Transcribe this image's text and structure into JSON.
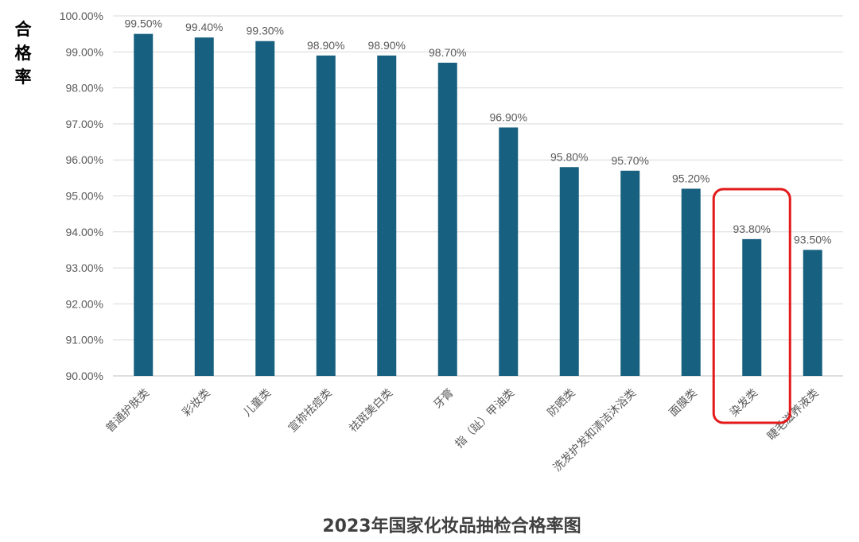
{
  "chart_data": {
    "type": "bar",
    "title": "2023年国家化妆品抽检合格率图",
    "ylabel": "合格率",
    "xlabel": "",
    "ylim": [
      90,
      100
    ],
    "ytick_step": 1,
    "ytick_labels": [
      "90.00%",
      "91.00%",
      "92.00%",
      "93.00%",
      "94.00%",
      "95.00%",
      "96.00%",
      "97.00%",
      "98.00%",
      "99.00%",
      "100.00%"
    ],
    "grid": true,
    "categories": [
      "普通护肤类",
      "彩妆类",
      "儿童类",
      "宣称祛痘类",
      "祛斑美白类",
      "牙膏",
      "指（趾）甲油类",
      "防晒类",
      "洗发护发和清洁沐浴类",
      "面膜类",
      "染发类",
      "睫毛滋养液类"
    ],
    "values": [
      99.5,
      99.4,
      99.3,
      98.9,
      98.9,
      98.7,
      96.9,
      95.8,
      95.7,
      95.2,
      93.8,
      93.5
    ],
    "data_labels": [
      "99.50%",
      "99.40%",
      "99.30%",
      "98.90%",
      "98.90%",
      "98.70%",
      "96.90%",
      "95.80%",
      "95.70%",
      "95.20%",
      "93.80%",
      "93.50%"
    ],
    "bar_color": "#17607f",
    "highlight": {
      "category": "染发类",
      "color": "#e3191b"
    }
  }
}
